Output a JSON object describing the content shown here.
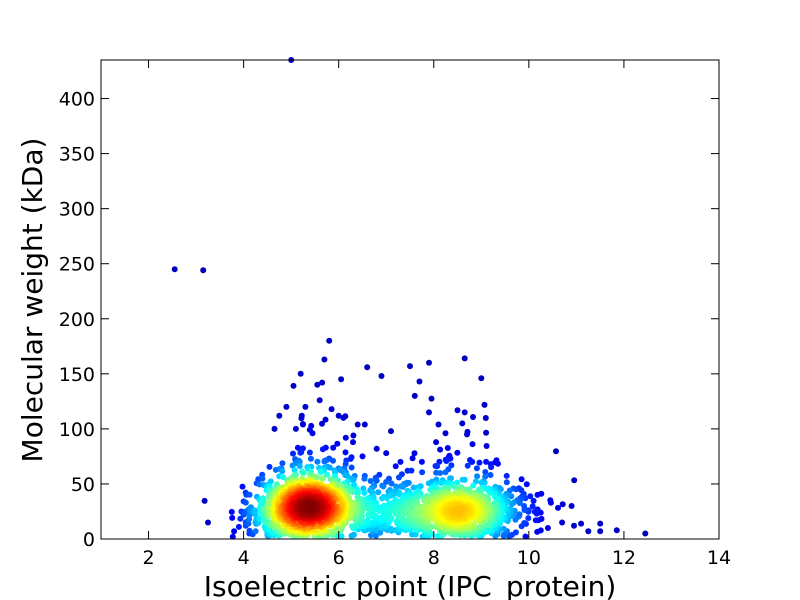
{
  "chart_data": {
    "type": "scatter",
    "xlabel": "Isoelectric point (IPC_protein)",
    "ylabel": "Molecular weight (kDa)",
    "xlim": [
      1,
      14
    ],
    "ylim": [
      0,
      435
    ],
    "xticks": [
      2,
      4,
      6,
      8,
      10,
      12,
      14
    ],
    "yticks": [
      0,
      50,
      100,
      150,
      200,
      250,
      300,
      350,
      400
    ],
    "grid": false,
    "colormap": "jet (point density)",
    "colors": {
      "low_density": "#00008f",
      "high_density": "#800000"
    },
    "clusters": [
      {
        "center_pI": 5.4,
        "center_mw": 28,
        "spread_pI": 0.55,
        "spread_mw": 14,
        "count": 1300
      },
      {
        "center_pI": 8.6,
        "center_mw": 25,
        "spread_pI": 0.65,
        "spread_mw": 13,
        "count": 900
      }
    ],
    "outliers": [
      [
        2.55,
        245
      ],
      [
        3.15,
        244
      ],
      [
        5.0,
        435
      ],
      [
        3.25,
        15
      ],
      [
        5.8,
        180
      ],
      [
        5.7,
        163
      ],
      [
        6.6,
        156
      ],
      [
        6.9,
        148
      ],
      [
        7.5,
        157
      ],
      [
        7.9,
        160
      ],
      [
        8.65,
        164
      ],
      [
        9.0,
        146
      ],
      [
        7.7,
        143
      ],
      [
        5.2,
        150
      ],
      [
        5.05,
        139
      ],
      [
        5.55,
        140
      ],
      [
        5.65,
        142
      ],
      [
        6.05,
        145
      ],
      [
        7.6,
        130
      ],
      [
        8.5,
        117
      ],
      [
        8.65,
        115
      ],
      [
        7.9,
        115
      ],
      [
        8.1,
        104
      ],
      [
        8.6,
        105
      ],
      [
        8.7,
        95
      ],
      [
        7.1,
        98
      ],
      [
        4.75,
        112
      ],
      [
        4.65,
        100
      ],
      [
        5.3,
        120
      ],
      [
        5.85,
        118
      ],
      [
        6.1,
        110
      ],
      [
        6.4,
        104
      ],
      [
        6.55,
        104
      ],
      [
        7.3,
        70
      ],
      [
        7.0,
        78
      ],
      [
        9.2,
        68
      ],
      [
        9.1,
        70
      ],
      [
        10.9,
        30
      ],
      [
        11.5,
        14
      ],
      [
        11.5,
        7
      ],
      [
        11.85,
        8
      ],
      [
        12.45,
        5
      ],
      [
        11.1,
        14
      ],
      [
        10.7,
        15
      ],
      [
        10.4,
        10
      ],
      [
        10.95,
        12
      ],
      [
        11.25,
        7
      ],
      [
        10.2,
        17
      ],
      [
        10.25,
        24
      ],
      [
        10.0,
        26
      ],
      [
        9.6,
        44
      ],
      [
        9.9,
        30
      ],
      [
        3.8,
        7
      ],
      [
        3.9,
        11
      ],
      [
        4.0,
        22
      ],
      [
        4.1,
        14
      ],
      [
        5.1,
        100
      ],
      [
        5.25,
        104
      ],
      [
        5.45,
        96
      ],
      [
        6.0,
        112
      ],
      [
        6.15,
        92
      ],
      [
        6.3,
        88
      ],
      [
        6.8,
        82
      ],
      [
        7.2,
        66
      ],
      [
        7.45,
        62
      ],
      [
        7.75,
        70
      ],
      [
        8.05,
        88
      ],
      [
        8.25,
        72
      ],
      [
        8.8,
        70
      ],
      [
        6.5,
        75
      ],
      [
        4.9,
        120
      ],
      [
        5.6,
        126
      ]
    ]
  }
}
